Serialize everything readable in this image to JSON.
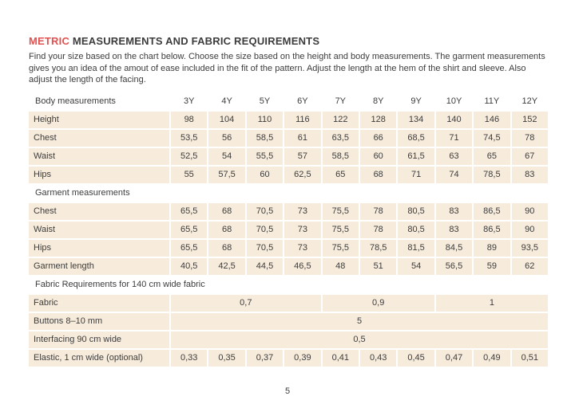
{
  "page": {
    "title": {
      "highlight": "METRIC",
      "rest": " MEASUREMENTS AND FABRIC REQUIREMENTS"
    },
    "intro": "Find your size based on the chart below. Choose the size based on the height and body measurements. The garment measurements gives you an idea of the amout of ease included in the fit of the pattern. Adjust the length at the hem of the shirt and sleeve. Also adjust the length of the facing.",
    "page_number": "5"
  },
  "colors": {
    "accent": "#e0514f",
    "cell_bg": "#f7ecdc",
    "text": "#3c3c3c"
  },
  "table": {
    "sizes": [
      "3Y",
      "4Y",
      "5Y",
      "6Y",
      "7Y",
      "8Y",
      "9Y",
      "10Y",
      "11Y",
      "12Y"
    ],
    "sections": [
      {
        "header": "Body measurements",
        "show_sizes": true,
        "rows": [
          {
            "label": "Height",
            "values": [
              "98",
              "104",
              "110",
              "116",
              "122",
              "128",
              "134",
              "140",
              "146",
              "152"
            ]
          },
          {
            "label": "Chest",
            "values": [
              "53,5",
              "56",
              "58,5",
              "61",
              "63,5",
              "66",
              "68,5",
              "71",
              "74,5",
              "78"
            ]
          },
          {
            "label": "Waist",
            "values": [
              "52,5",
              "54",
              "55,5",
              "57",
              "58,5",
              "60",
              "61,5",
              "63",
              "65",
              "67"
            ]
          },
          {
            "label": "Hips",
            "values": [
              "55",
              "57,5",
              "60",
              "62,5",
              "65",
              "68",
              "71",
              "74",
              "78,5",
              "83"
            ]
          }
        ]
      },
      {
        "header": "Garment measurements",
        "show_sizes": false,
        "rows": [
          {
            "label": "Chest",
            "values": [
              "65,5",
              "68",
              "70,5",
              "73",
              "75,5",
              "78",
              "80,5",
              "83",
              "86,5",
              "90"
            ]
          },
          {
            "label": "Waist",
            "values": [
              "65,5",
              "68",
              "70,5",
              "73",
              "75,5",
              "78",
              "80,5",
              "83",
              "86,5",
              "90"
            ]
          },
          {
            "label": "Hips",
            "values": [
              "65,5",
              "68",
              "70,5",
              "73",
              "75,5",
              "78,5",
              "81,5",
              "84,5",
              "89",
              "93,5"
            ]
          },
          {
            "label": "Garment length",
            "values": [
              "40,5",
              "42,5",
              "44,5",
              "46,5",
              "48",
              "51",
              "54",
              "56,5",
              "59",
              "62"
            ]
          }
        ]
      },
      {
        "header": "Fabric Requirements for 140 cm wide fabric",
        "show_sizes": false,
        "rows": [
          {
            "label": "Fabric",
            "values": [
              {
                "v": "0,7",
                "span": 4
              },
              {
                "v": "0,9",
                "span": 3
              },
              {
                "v": "1",
                "span": 3
              }
            ]
          },
          {
            "label": "Buttons 8–10 mm",
            "values": [
              {
                "v": "5",
                "span": 10
              }
            ]
          },
          {
            "label": "Interfacing 90 cm wide",
            "values": [
              {
                "v": "0,5",
                "span": 10
              }
            ]
          },
          {
            "label": "Elastic, 1 cm wide (optional)",
            "values": [
              "0,33",
              "0,35",
              "0,37",
              "0,39",
              "0,41",
              "0,43",
              "0,45",
              "0,47",
              "0,49",
              "0,51"
            ]
          }
        ]
      }
    ]
  }
}
